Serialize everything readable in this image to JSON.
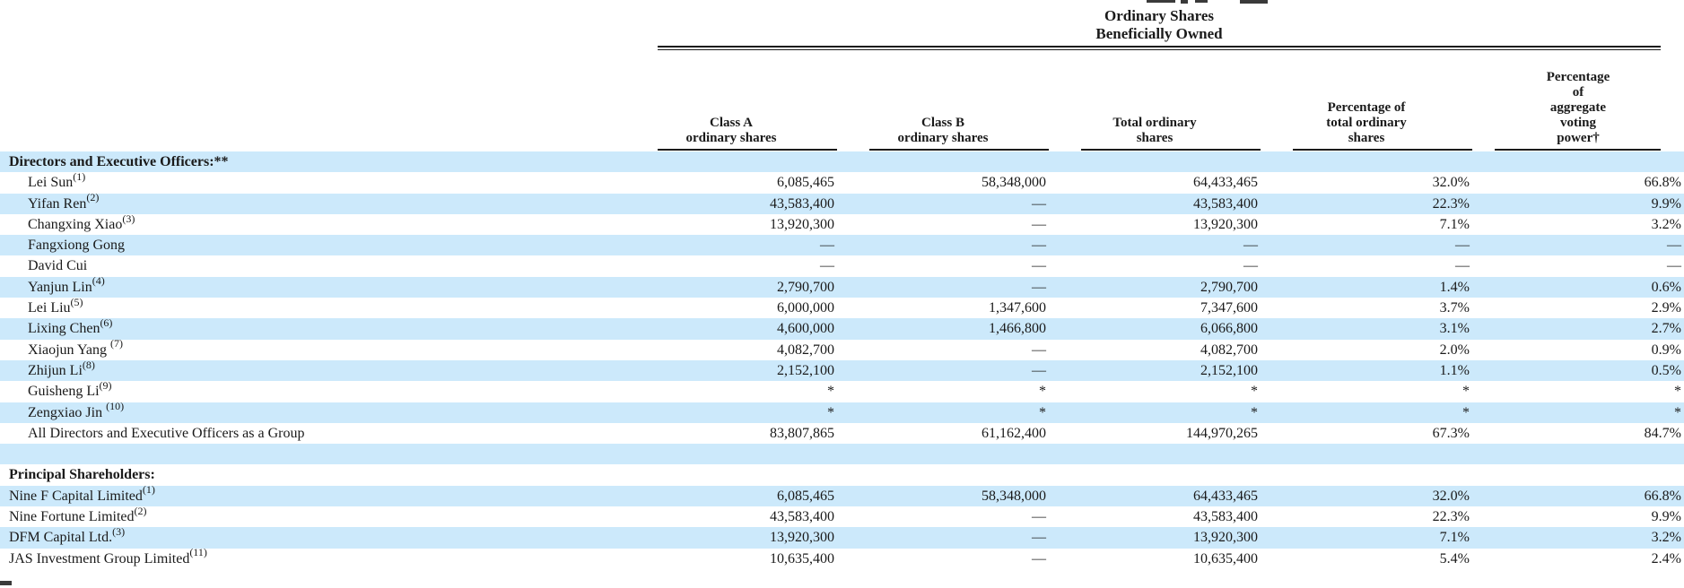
{
  "document": {
    "colors": {
      "row_highlight": "#cce9fb",
      "rule": "#1a1a1a",
      "text": "#1a1a1a"
    },
    "header": {
      "group_title_line1": "Ordinary Shares",
      "group_title_line2": "Beneficially Owned"
    },
    "columns": [
      {
        "id": "class-a-shares",
        "lines": [
          "Class A",
          "ordinary shares"
        ]
      },
      {
        "id": "class-b-shares",
        "lines": [
          "Class B",
          "ordinary shares"
        ]
      },
      {
        "id": "total-shares",
        "lines": [
          "Total ordinary",
          "shares"
        ]
      },
      {
        "id": "pct-total-shares",
        "lines": [
          "Percentage of",
          "total ordinary",
          "shares"
        ]
      },
      {
        "id": "pct-voting-power",
        "lines": [
          "Percentage",
          "of",
          "aggregate",
          "voting",
          "power†"
        ]
      }
    ],
    "rows": [
      {
        "type": "section",
        "label": "Directors and Executive Officers:**",
        "sup": "",
        "indent": false,
        "shaded": true,
        "values": [
          "",
          "",
          "",
          "",
          ""
        ]
      },
      {
        "type": "data",
        "label": "Lei Sun",
        "sup": "(1)",
        "indent": true,
        "shaded": false,
        "values": [
          "6,085,465",
          "58,348,000",
          "64,433,465",
          "32.0%",
          "66.8%"
        ]
      },
      {
        "type": "data",
        "label": "Yifan Ren",
        "sup": "(2)",
        "indent": true,
        "shaded": true,
        "values": [
          "43,583,400",
          "—",
          "43,583,400",
          "22.3%",
          "9.9%"
        ]
      },
      {
        "type": "data",
        "label": "Changxing Xiao",
        "sup": "(3)",
        "indent": true,
        "shaded": false,
        "values": [
          "13,920,300",
          "—",
          "13,920,300",
          "7.1%",
          "3.2%"
        ]
      },
      {
        "type": "data",
        "label": "Fangxiong Gong",
        "sup": "",
        "indent": true,
        "shaded": true,
        "values": [
          "—",
          "—",
          "—",
          "—",
          "—"
        ]
      },
      {
        "type": "data",
        "label": "David Cui",
        "sup": "",
        "indent": true,
        "shaded": false,
        "values": [
          "—",
          "—",
          "—",
          "—",
          "—"
        ]
      },
      {
        "type": "data",
        "label": "Yanjun Lin",
        "sup": "(4)",
        "indent": true,
        "shaded": true,
        "values": [
          "2,790,700",
          "—",
          "2,790,700",
          "1.4%",
          "0.6%"
        ]
      },
      {
        "type": "data",
        "label": "Lei Liu",
        "sup": "(5)",
        "indent": true,
        "shaded": false,
        "values": [
          "6,000,000",
          "1,347,600",
          "7,347,600",
          "3.7%",
          "2.9%"
        ]
      },
      {
        "type": "data",
        "label": "Lixing Chen",
        "sup": "(6)",
        "indent": true,
        "shaded": true,
        "values": [
          "4,600,000",
          "1,466,800",
          "6,066,800",
          "3.1%",
          "2.7%"
        ]
      },
      {
        "type": "data",
        "label": "Xiaojun Yang ",
        "sup": "(7)",
        "indent": true,
        "shaded": false,
        "values": [
          "4,082,700",
          "—",
          "4,082,700",
          "2.0%",
          "0.9%"
        ]
      },
      {
        "type": "data",
        "label": "Zhijun Li",
        "sup": "(8)",
        "indent": true,
        "shaded": true,
        "values": [
          "2,152,100",
          "—",
          "2,152,100",
          "1.1%",
          "0.5%"
        ]
      },
      {
        "type": "data",
        "label": "Guisheng Li",
        "sup": "(9)",
        "indent": true,
        "shaded": false,
        "values": [
          "*",
          "*",
          "*",
          "*",
          "*"
        ]
      },
      {
        "type": "data",
        "label": "Zengxiao Jin ",
        "sup": "(10)",
        "indent": true,
        "shaded": true,
        "values": [
          "*",
          "*",
          "*",
          "*",
          "*"
        ]
      },
      {
        "type": "data",
        "label": "All Directors and Executive Officers as a Group",
        "sup": "",
        "indent": true,
        "shaded": false,
        "values": [
          "83,807,865",
          "61,162,400",
          "144,970,265",
          "67.3%",
          "84.7%"
        ]
      },
      {
        "type": "blank",
        "label": "",
        "sup": "",
        "indent": false,
        "shaded": true,
        "values": [
          "",
          "",
          "",
          "",
          ""
        ]
      },
      {
        "type": "section",
        "label": "Principal Shareholders:",
        "sup": "",
        "indent": false,
        "shaded": false,
        "values": [
          "",
          "",
          "",
          "",
          ""
        ]
      },
      {
        "type": "data",
        "label": "Nine F Capital Limited",
        "sup": "(1)",
        "indent": false,
        "shaded": true,
        "values": [
          "6,085,465",
          "58,348,000",
          "64,433,465",
          "32.0%",
          "66.8%"
        ]
      },
      {
        "type": "data",
        "label": "Nine Fortune Limited",
        "sup": "(2)",
        "indent": false,
        "shaded": false,
        "values": [
          "43,583,400",
          "—",
          "43,583,400",
          "22.3%",
          "9.9%"
        ]
      },
      {
        "type": "data",
        "label": "DFM Capital Ltd.",
        "sup": "(3)",
        "indent": false,
        "shaded": true,
        "values": [
          "13,920,300",
          "—",
          "13,920,300",
          "7.1%",
          "3.2%"
        ]
      },
      {
        "type": "data",
        "label": "JAS Investment Group Limited",
        "sup": "(11)",
        "indent": false,
        "shaded": false,
        "values": [
          "10,635,400",
          "—",
          "10,635,400",
          "5.4%",
          "2.4%"
        ]
      }
    ]
  }
}
